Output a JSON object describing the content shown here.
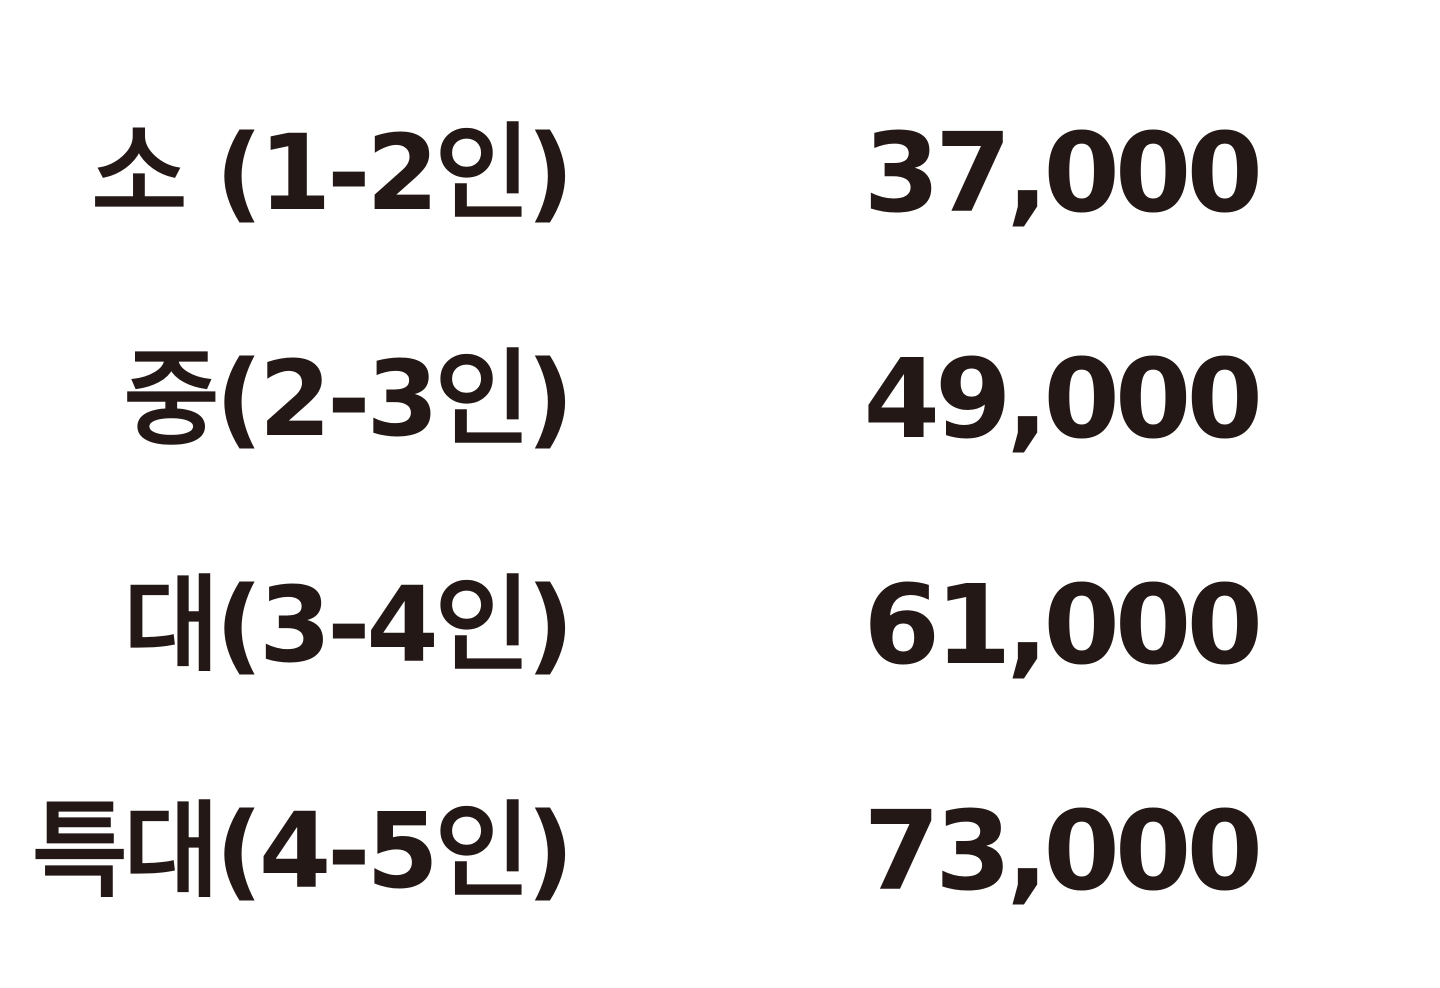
{
  "price_list": {
    "rows": [
      {
        "size": "소 (1-2인)",
        "price": "37,000"
      },
      {
        "size": "중(2-3인)",
        "price": "49,000"
      },
      {
        "size": "대(3-4인)",
        "price": "61,000"
      },
      {
        "size": "특대(4-5인)",
        "price": "73,000"
      }
    ]
  }
}
